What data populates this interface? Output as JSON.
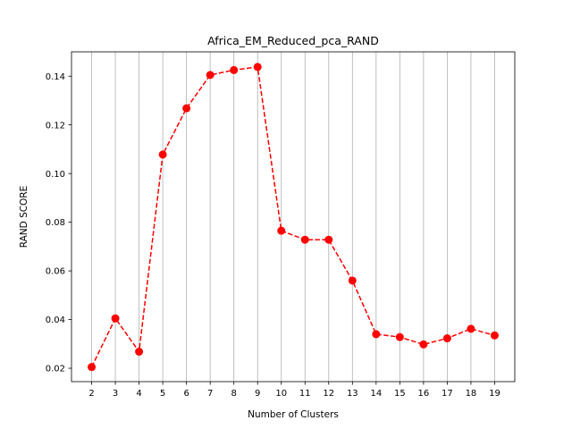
{
  "chart_data": {
    "type": "line",
    "title": "Africa_EM_Reduced_pca_RAND",
    "xlabel": "Number of Clusters",
    "ylabel": "RAND SCORE",
    "x": [
      2,
      3,
      4,
      5,
      6,
      7,
      8,
      9,
      10,
      11,
      12,
      13,
      14,
      15,
      16,
      17,
      18,
      19
    ],
    "series": [
      {
        "values": [
          0.0205,
          0.0405,
          0.0268,
          0.1078,
          0.1268,
          0.1405,
          0.1425,
          0.1438,
          0.0765,
          0.0728,
          0.0728,
          0.056,
          0.034,
          0.0328,
          0.0298,
          0.0323,
          0.0362,
          0.0335
        ]
      }
    ],
    "xlim": [
      1.15,
      19.85
    ],
    "ylim": [
      0.0145,
      0.15
    ],
    "yticks": [
      0.02,
      0.04,
      0.06,
      0.08,
      0.1,
      0.12,
      0.14
    ],
    "ytick_labels": [
      "0.02",
      "0.04",
      "0.06",
      "0.08",
      "0.10",
      "0.12",
      "0.14"
    ],
    "grid": "vertical",
    "line_style": "dashed",
    "marker": "circle",
    "color": "#ff0000"
  }
}
